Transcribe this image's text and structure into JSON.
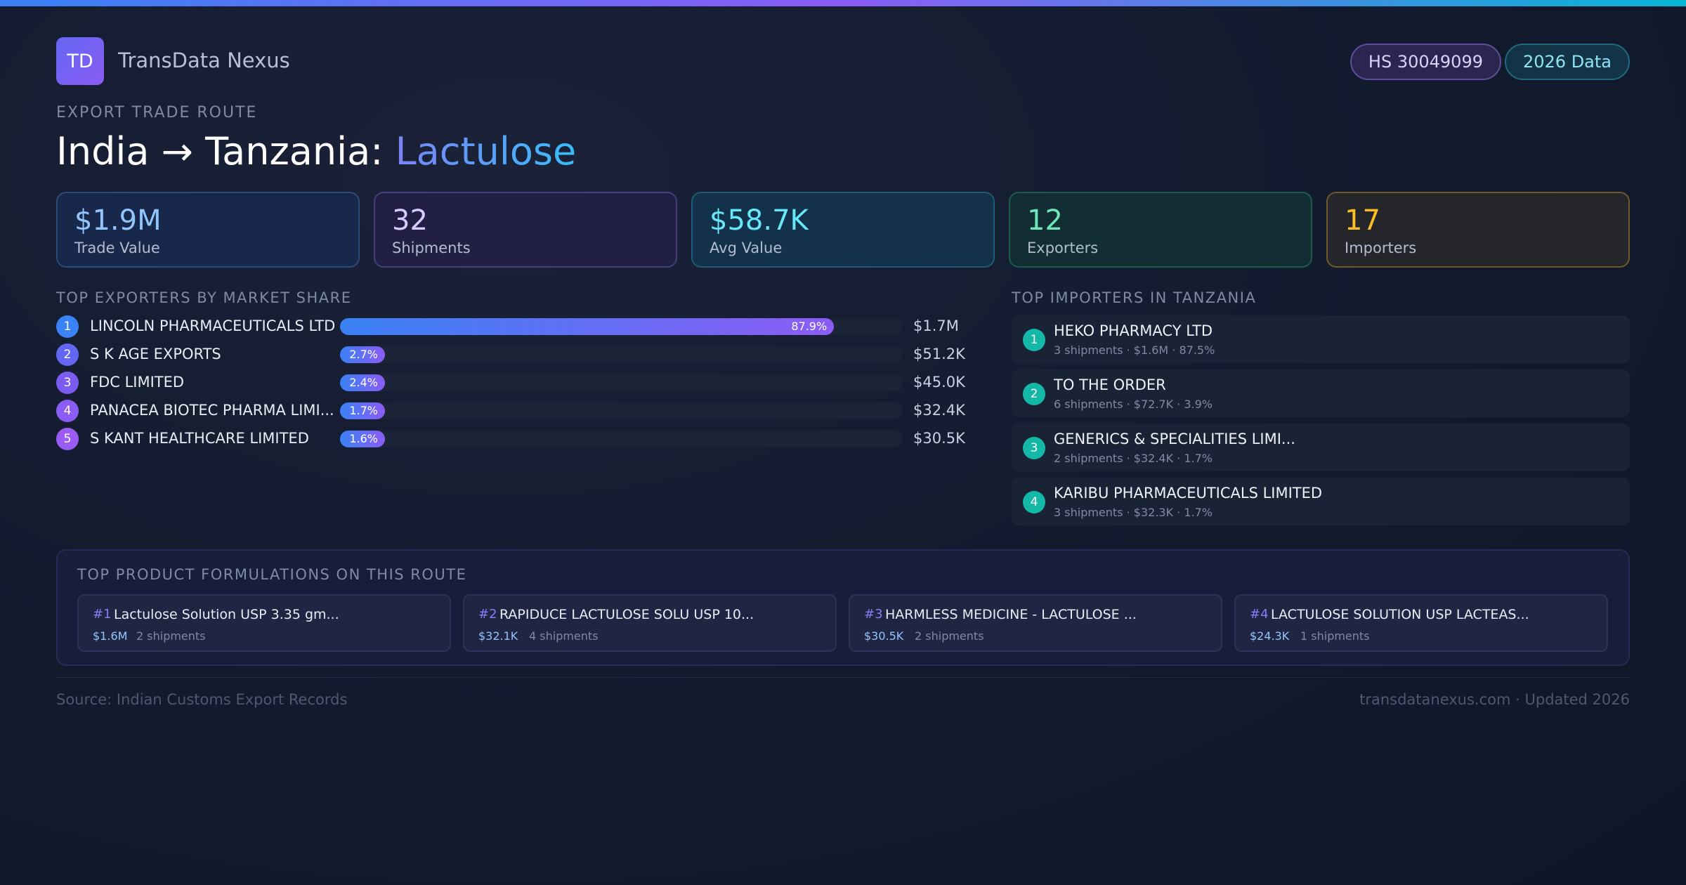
{
  "brand": {
    "logo_text": "TD",
    "name": "TransData Nexus"
  },
  "badges": {
    "hs_code": "HS 30049099",
    "year": "2026 Data"
  },
  "route": {
    "eyebrow": "EXPORT TRADE ROUTE",
    "title_prefix": "India → Tanzania: ",
    "product": "Lactulose"
  },
  "stats": [
    {
      "value": "$1.9M",
      "label": "Trade Value"
    },
    {
      "value": "32",
      "label": "Shipments"
    },
    {
      "value": "$58.7K",
      "label": "Avg Value"
    },
    {
      "value": "12",
      "label": "Exporters"
    },
    {
      "value": "17",
      "label": "Importers"
    }
  ],
  "exporters": {
    "title": "TOP EXPORTERS BY MARKET SHARE",
    "rank_colors": [
      "#3b82f6",
      "#6366f1",
      "#7c5cf0",
      "#8b5cf6",
      "#9b5cf6"
    ],
    "items": [
      {
        "rank": "1",
        "name": "LINCOLN PHARMACEUTICALS LTD",
        "share": 87.9,
        "share_label": "87.9%",
        "value": "$1.7M"
      },
      {
        "rank": "2",
        "name": "S K AGE EXPORTS",
        "share": 2.7,
        "share_label": "2.7%",
        "value": "$51.2K"
      },
      {
        "rank": "3",
        "name": "FDC LIMITED",
        "share": 2.4,
        "share_label": "2.4%",
        "value": "$45.0K"
      },
      {
        "rank": "4",
        "name": "PANACEA BIOTEC PHARMA LIMI...",
        "share": 1.7,
        "share_label": "1.7%",
        "value": "$32.4K"
      },
      {
        "rank": "5",
        "name": "S KANT HEALTHCARE LIMITED",
        "share": 1.6,
        "share_label": "1.6%",
        "value": "$30.5K"
      }
    ]
  },
  "importers": {
    "title": "TOP IMPORTERS IN TANZANIA",
    "items": [
      {
        "rank": "1",
        "name": "HEKO PHARMACY LTD",
        "meta": "3 shipments · $1.6M · 87.5%"
      },
      {
        "rank": "2",
        "name": "TO THE ORDER",
        "meta": "6 shipments · $72.7K · 3.9%"
      },
      {
        "rank": "3",
        "name": "GENERICS & SPECIALITIES LIMI...",
        "meta": "2 shipments · $32.4K · 1.7%"
      },
      {
        "rank": "4",
        "name": "KARIBU PHARMACEUTICALS LIMITED",
        "meta": "3 shipments · $32.3K · 1.7%"
      }
    ]
  },
  "formulations": {
    "title": "TOP PRODUCT FORMULATIONS ON THIS ROUTE",
    "items": [
      {
        "num": "#1",
        "name": "Lactulose Solution USP 3.35 gm...",
        "value": "$1.6M",
        "shipments": "2 shipments"
      },
      {
        "num": "#2",
        "name": "RAPIDUCE LACTULOSE SOLU USP 10...",
        "value": "$32.1K",
        "shipments": "4 shipments"
      },
      {
        "num": "#3",
        "name": "HARMLESS MEDICINE - LACTULOSE ...",
        "value": "$30.5K",
        "shipments": "2 shipments"
      },
      {
        "num": "#4",
        "name": "LACTULOSE SOLUTION USP LACTEAS...",
        "value": "$24.3K",
        "shipments": "1 shipments"
      }
    ]
  },
  "footer": {
    "source": "Source: Indian Customs Export Records",
    "site": "transdatanexus.com · Updated 2026"
  }
}
